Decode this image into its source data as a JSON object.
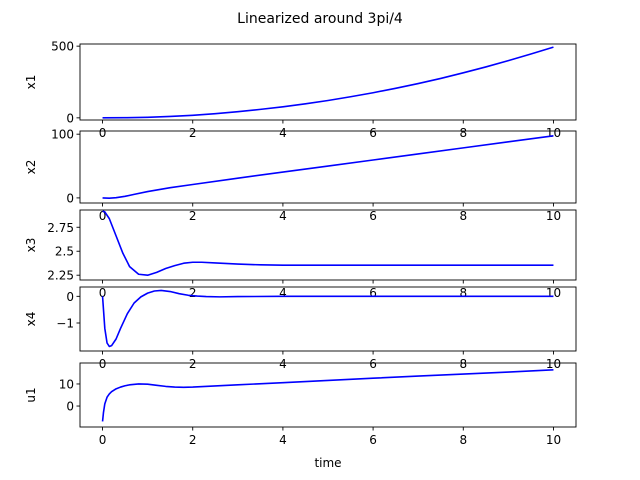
{
  "chart_data": {
    "type": "line",
    "title": "Linearized around 3pi/4",
    "xlabel": "time",
    "xlim": [
      -0.5,
      10.5
    ],
    "xticks": [
      0,
      2,
      4,
      6,
      8,
      10
    ],
    "line_color": "#0000ff",
    "panels": [
      {
        "ylabel": "x1",
        "ylim": [
          -15,
          515
        ],
        "yticks": [
          0,
          500
        ],
        "x": [
          0,
          0.5,
          1,
          1.5,
          2,
          2.5,
          3,
          3.5,
          4,
          4.5,
          5,
          5.5,
          6,
          6.5,
          7,
          7.5,
          8,
          8.5,
          9,
          9.5,
          10
        ],
        "y": [
          0,
          1,
          4,
          10,
          18,
          29,
          43,
          59,
          77,
          98,
          121,
          147,
          175,
          206,
          239,
          275,
          314,
          355,
          399,
          445,
          493
        ]
      },
      {
        "ylabel": "x2",
        "ylim": [
          -8,
          105
        ],
        "yticks": [
          0,
          100
        ],
        "x": [
          0,
          0.15,
          0.3,
          0.5,
          0.7,
          1,
          1.5,
          2,
          3,
          4,
          5,
          6,
          7,
          8,
          9,
          10
        ],
        "y": [
          0,
          -0.5,
          0.3,
          2.5,
          5.5,
          10,
          16,
          21,
          31,
          40.5,
          50,
          59.5,
          69,
          78.5,
          88,
          97.5
        ]
      },
      {
        "ylabel": "x3",
        "ylim": [
          2.2,
          2.93
        ],
        "yticks": [
          2.25,
          2.5,
          2.75
        ],
        "x": [
          0,
          0.05,
          0.15,
          0.3,
          0.45,
          0.6,
          0.8,
          1.0,
          1.2,
          1.4,
          1.6,
          1.8,
          2.0,
          2.2,
          2.5,
          3.0,
          3.5,
          4.0,
          5.0,
          6.0,
          7.0,
          8.0,
          9.0,
          10.0
        ],
        "y": [
          2.92,
          2.91,
          2.84,
          2.66,
          2.48,
          2.34,
          2.26,
          2.25,
          2.28,
          2.32,
          2.35,
          2.375,
          2.385,
          2.385,
          2.378,
          2.366,
          2.358,
          2.355,
          2.354,
          2.354,
          2.354,
          2.354,
          2.354,
          2.354
        ]
      },
      {
        "ylabel": "x4",
        "ylim": [
          -2.05,
          0.35
        ],
        "yticks": [
          0,
          -1
        ],
        "x": [
          0,
          0.05,
          0.1,
          0.15,
          0.2,
          0.3,
          0.4,
          0.55,
          0.7,
          0.85,
          1.0,
          1.15,
          1.3,
          1.5,
          1.7,
          1.9,
          2.1,
          2.3,
          2.6,
          3.0,
          4.0,
          5.0,
          6.0,
          7.0,
          8.0,
          9.0,
          10.0
        ],
        "y": [
          0,
          -1.2,
          -1.75,
          -1.88,
          -1.85,
          -1.6,
          -1.2,
          -0.65,
          -0.25,
          -0.02,
          0.12,
          0.2,
          0.22,
          0.18,
          0.1,
          0.04,
          0.01,
          -0.01,
          -0.02,
          -0.01,
          0,
          0,
          0,
          0,
          0,
          0,
          0
        ]
      },
      {
        "ylabel": "u1",
        "ylim": [
          -9.5,
          19.5
        ],
        "yticks": [
          0,
          10
        ],
        "x": [
          0,
          0.02,
          0.05,
          0.1,
          0.15,
          0.2,
          0.3,
          0.4,
          0.5,
          0.6,
          0.8,
          1.0,
          1.2,
          1.4,
          1.6,
          1.8,
          2.0,
          3.0,
          4.0,
          5.0,
          6.0,
          7.0,
          8.0,
          9.0,
          10.0
        ],
        "y": [
          -7,
          -3,
          1,
          4,
          5.5,
          6.5,
          7.8,
          8.6,
          9.2,
          9.6,
          10.0,
          9.9,
          9.4,
          8.9,
          8.6,
          8.5,
          8.6,
          9.6,
          10.6,
          11.6,
          12.6,
          13.6,
          14.5,
          15.4,
          16.4
        ]
      }
    ]
  }
}
